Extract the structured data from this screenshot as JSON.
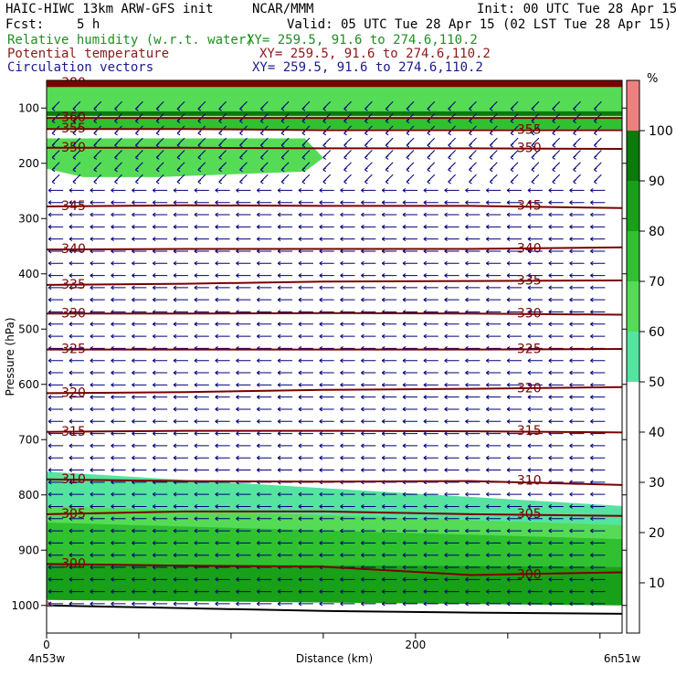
{
  "header": {
    "model": "HAIC-HIWC 13km ARW-GFS init",
    "agency": "NCAR/MMM",
    "init": "Init: 00 UTC Tue 28 Apr 15",
    "fcst_label": "Fcst:",
    "fcst_value": "5 h",
    "valid": "Valid: 05 UTC Tue 28 Apr 15 (02 LST Tue 28 Apr 15)",
    "fields": [
      {
        "name": "Relative humidity (w.r.t. water)",
        "xy": "XY= 259.5, 91.6 to 274.6,110.2",
        "color": "#1f8f1f"
      },
      {
        "name": "Potential temperature",
        "xy": "XY= 259.5, 91.6 to 274.6,110.2",
        "color": "#8b1a1a"
      },
      {
        "name": "Circulation vectors",
        "xy": "XY= 259.5, 91.6 to 274.6,110.2",
        "color": "#1a1a8b"
      }
    ]
  },
  "chart_data": {
    "type": "cross-section",
    "ylabel": "Pressure (hPa)",
    "xlabel": "Distance (km)",
    "x_start_label": "4n53w",
    "x_end_label": "6n51w",
    "xlim": [
      0,
      312
    ],
    "ylim": [
      1050,
      50
    ],
    "yticks": [
      100,
      200,
      300,
      400,
      500,
      600,
      700,
      800,
      900,
      1000
    ],
    "xticks": [
      0,
      200
    ],
    "colorbar": {
      "unit": "%",
      "levels": [
        10,
        20,
        30,
        40,
        50,
        60,
        70,
        80,
        90,
        100
      ],
      "bands": [
        {
          "range": [
            50,
            60
          ],
          "color": "#55e3a0"
        },
        {
          "range": [
            60,
            70
          ],
          "color": "#55db55"
        },
        {
          "range": [
            70,
            80
          ],
          "color": "#2fc12f"
        },
        {
          "range": [
            80,
            90
          ],
          "color": "#18a018"
        },
        {
          "range": [
            90,
            100
          ],
          "color": "#0a7a0a"
        },
        {
          "range": [
            100,
            110
          ],
          "color": "#f08080"
        }
      ]
    },
    "theta_isentropes": [
      {
        "label": "380",
        "p": [
          55,
          55,
          55,
          55,
          55
        ],
        "left_label": true
      },
      {
        "label": "360",
        "p": [
          118,
          118,
          118,
          118,
          118
        ]
      },
      {
        "label": "355",
        "p": [
          138,
          138,
          140,
          140,
          140
        ]
      },
      {
        "label": "350",
        "p": [
          172,
          172,
          173,
          173,
          174
        ]
      },
      {
        "label": "345",
        "p": [
          278,
          276,
          277,
          277,
          281
        ]
      },
      {
        "label": "340",
        "p": [
          356,
          355,
          355,
          355,
          352
        ]
      },
      {
        "label": "335",
        "p": [
          420,
          418,
          414,
          413,
          412
        ]
      },
      {
        "label": "330",
        "p": [
          472,
          472,
          471,
          472,
          474
        ]
      },
      {
        "label": "325",
        "p": [
          537,
          537,
          537,
          537,
          536
        ]
      },
      {
        "label": "320",
        "p": [
          616,
          614,
          610,
          608,
          605
        ]
      },
      {
        "label": "315",
        "p": [
          686,
          684,
          684,
          685,
          687
        ]
      },
      {
        "label": "310",
        "p": [
          772,
          775,
          776,
          775,
          782
        ]
      },
      {
        "label": "305",
        "p": [
          835,
          830,
          830,
          835,
          838
        ]
      },
      {
        "label": "300",
        "p": [
          925,
          928,
          930,
          945,
          940
        ]
      }
    ],
    "theta_x": [
      0,
      75,
      150,
      230,
      312
    ],
    "surface_pressure": [
      1000,
      1005,
      1010,
      1013,
      1015
    ],
    "rh_regions": [
      {
        "band": 60,
        "x": [
          0,
          312
        ],
        "top": [
          62,
          62
        ],
        "bottom": [
          115,
          115
        ]
      },
      {
        "band": 60,
        "x": [
          0,
          20,
          60,
          140,
          150,
          140,
          60,
          20,
          0
        ],
        "top": [
          155,
          155,
          155,
          155,
          190,
          215,
          225,
          225,
          210
        ]
      },
      {
        "band": 50,
        "x": [
          0,
          312
        ],
        "top": [
          758,
          820
        ],
        "bottom": [
          830,
          860
        ]
      },
      {
        "band": 60,
        "x": [
          0,
          312
        ],
        "top": [
          820,
          855
        ],
        "bottom": [
          870,
          890
        ]
      },
      {
        "band": 70,
        "x": [
          0,
          312
        ],
        "top": [
          850,
          880
        ],
        "bottom": [
          930,
          930
        ]
      },
      {
        "band": 80,
        "x": [
          0,
          312
        ],
        "top": [
          925,
          930
        ],
        "bottom": [
          990,
          1000
        ]
      }
    ],
    "wind_vectors": {
      "direction": "easterly",
      "jet_level": [
        100,
        200
      ]
    }
  }
}
